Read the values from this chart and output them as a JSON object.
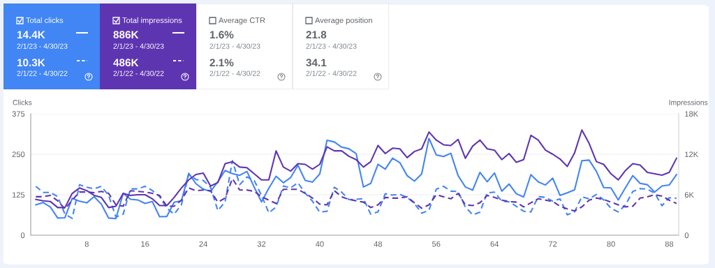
{
  "chart_data": [
    {
      "type": "other",
      "title": "Total clicks",
      "color": "#4285f4",
      "annotations": [
        "14.4K",
        "2/1/23 - 4/30/23",
        "10.3K",
        "2/1/22 - 4/30/22"
      ]
    },
    {
      "type": "other",
      "title": "Total impressions",
      "color": "#5e35b1",
      "annotations": [
        "886K",
        "2/1/23 - 4/30/23",
        "486K",
        "2/1/22 - 4/30/22"
      ]
    },
    {
      "type": "other",
      "title": "Average CTR",
      "color": "#ffffff",
      "annotations": [
        "1.6%",
        "2/1/23 - 4/30/23",
        "2.1%",
        "2/1/22 - 4/30/22"
      ]
    },
    {
      "type": "other",
      "title": "Average position",
      "color": "#ffffff",
      "annotations": [
        "21.8",
        "2/1/23 - 4/30/23",
        "34.1",
        "2/1/22 - 4/30/22"
      ]
    },
    {
      "type": "line",
      "ylabel": "Clicks",
      "y2label": "Impressions",
      "x": [
        1,
        2,
        3,
        4,
        5,
        6,
        7,
        8,
        9,
        10,
        11,
        12,
        13,
        14,
        15,
        16,
        17,
        18,
        19,
        20,
        21,
        22,
        23,
        24,
        25,
        26,
        27,
        28,
        29,
        30,
        31,
        32,
        33,
        34,
        35,
        36,
        37,
        38,
        39,
        40,
        41,
        42,
        43,
        44,
        45,
        46,
        47,
        48,
        49,
        50,
        51,
        52,
        53,
        54,
        55,
        56,
        57,
        58,
        59,
        60,
        61,
        62,
        63,
        64,
        65,
        66,
        67,
        68,
        69,
        70,
        71,
        72,
        73,
        74,
        75,
        76,
        77,
        78,
        79,
        80,
        81,
        82,
        83,
        84,
        85,
        86,
        87,
        88,
        89
      ],
      "xlim": [
        0.3,
        89.3
      ],
      "xticks": [
        8,
        16,
        24,
        32,
        40,
        48,
        56,
        64,
        72,
        80,
        88
      ],
      "ylim": [
        0,
        375
      ],
      "yticks": [
        0,
        125,
        250,
        375
      ],
      "y2lim": [
        0,
        18000
      ],
      "y2ticks": [
        {
          "value": 0,
          "label": "0"
        },
        {
          "value": 6000,
          "label": "6K"
        },
        {
          "value": 12000,
          "label": "12K"
        },
        {
          "value": 18000,
          "label": "18K"
        }
      ],
      "grid": "y",
      "marker": "none",
      "series": [
        {
          "color": "#5e35b1",
          "axis": "y2",
          "line_style": "dashed",
          "values": [
            5700,
            5700,
            5900,
            5100,
            3900,
            5200,
            6400,
            6400,
            6300,
            6500,
            6200,
            4500,
            4300,
            6600,
            6500,
            6400,
            6200,
            5900,
            4300,
            4300,
            5200,
            7000,
            6600,
            6700,
            6600,
            4900,
            5500,
            8400,
            6700,
            6700,
            6500,
            5700,
            5200,
            4700,
            6800,
            6800,
            6800,
            6200,
            5500,
            4600,
            4500,
            6600,
            5700,
            5300,
            5100,
            4900,
            4100,
            4500,
            5600,
            5500,
            5500,
            5700,
            4800,
            4000,
            4500,
            6000,
            5700,
            5400,
            6200,
            4500,
            4400,
            4800,
            5900,
            5600,
            5200,
            5000,
            4900,
            4200,
            4800,
            5400,
            5200,
            5000,
            4300,
            3900,
            3600,
            4200,
            5200,
            5500,
            5300,
            4900,
            4500,
            4200,
            4300,
            5500,
            5700,
            6000,
            5800,
            5200,
            4700
          ]
        },
        {
          "color": "#4285f4",
          "line_style": "dashed",
          "values": [
            151,
            132,
            132,
            119,
            65,
            52,
            156,
            148,
            143,
            151,
            123,
            56,
            65,
            143,
            143,
            151,
            138,
            119,
            83,
            65,
            94,
            188,
            172,
            169,
            148,
            76,
            103,
            230,
            156,
            180,
            169,
            123,
            69,
            87,
            152,
            146,
            162,
            130,
            105,
            71,
            74,
            148,
            133,
            110,
            111,
            113,
            65,
            72,
            128,
            124,
            126,
            117,
            98,
            68,
            77,
            142,
            151,
            136,
            135,
            87,
            63,
            71,
            131,
            133,
            105,
            103,
            89,
            74,
            72,
            119,
            117,
            105,
            112,
            63,
            72,
            119,
            112,
            126,
            109,
            83,
            72,
            94,
            135,
            144,
            142,
            130,
            91,
            116,
            114
          ]
        },
        {
          "color": "#5e35b1",
          "axis": "y2",
          "line_style": "solid",
          "values": [
            5300,
            5100,
            5000,
            4100,
            4100,
            6200,
            7000,
            6600,
            5900,
            5600,
            4100,
            4300,
            6200,
            5900,
            6000,
            6000,
            5400,
            4400,
            4400,
            5600,
            7000,
            8200,
            9000,
            9200,
            7300,
            7800,
            10600,
            10900,
            10100,
            10000,
            9100,
            8200,
            8200,
            12500,
            10100,
            9500,
            10600,
            10500,
            9800,
            10500,
            13100,
            12500,
            12500,
            11700,
            11200,
            10100,
            10900,
            13300,
            12100,
            12900,
            12800,
            11500,
            12400,
            12800,
            15300,
            14100,
            13400,
            13300,
            14200,
            11400,
            13200,
            14100,
            12800,
            12600,
            11200,
            12100,
            10800,
            11200,
            14800,
            14100,
            12600,
            12000,
            11300,
            10200,
            12200,
            15600,
            13600,
            10900,
            10500,
            9100,
            8200,
            9600,
            10600,
            10400,
            9300,
            9100,
            8900,
            9300,
            11400
          ]
        },
        {
          "color": "#4285f4",
          "line_style": "solid",
          "values": [
            94,
            101,
            87,
            53,
            54,
            114,
            105,
            100,
            119,
            96,
            53,
            51,
            129,
            111,
            109,
            98,
            104,
            57,
            58,
            102,
            106,
            191,
            159,
            142,
            135,
            165,
            200,
            190,
            185,
            197,
            148,
            103,
            145,
            182,
            162,
            178,
            216,
            169,
            164,
            189,
            293,
            288,
            272,
            267,
            252,
            149,
            160,
            219,
            204,
            238,
            224,
            184,
            167,
            189,
            299,
            248,
            243,
            253,
            184,
            149,
            139,
            194,
            165,
            192,
            136,
            158,
            128,
            118,
            187,
            165,
            155,
            176,
            123,
            131,
            140,
            230,
            232,
            197,
            147,
            146,
            109,
            147,
            184,
            160,
            156,
            133,
            152,
            155,
            187
          ]
        }
      ]
    }
  ]
}
